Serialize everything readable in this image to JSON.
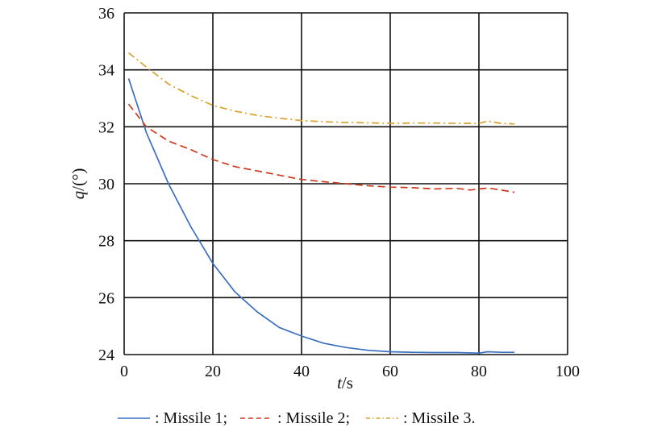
{
  "chart_data": {
    "type": "line",
    "title": "",
    "xlabel_italic": "t",
    "xlabel_rest": "/s",
    "ylabel_italic": "q",
    "ylabel_rest": "/(°)",
    "xlim": [
      0,
      100
    ],
    "ylim": [
      24,
      36
    ],
    "xticks": [
      0,
      20,
      40,
      60,
      80,
      100
    ],
    "yticks": [
      24,
      26,
      28,
      30,
      32,
      34,
      36
    ],
    "grid": true,
    "legend_placement": "bottom",
    "series": [
      {
        "name": "Missile 1",
        "legend_label": ": Missile 1;",
        "color": "#3a6fc0",
        "dash": "solid",
        "x": [
          1,
          5,
          10,
          15,
          20,
          25,
          30,
          35,
          40,
          45,
          50,
          55,
          60,
          65,
          70,
          75,
          80,
          82,
          85,
          88
        ],
        "y": [
          33.7,
          31.8,
          30.0,
          28.5,
          27.2,
          26.2,
          25.5,
          24.95,
          24.65,
          24.4,
          24.25,
          24.15,
          24.1,
          24.08,
          24.07,
          24.07,
          24.05,
          24.1,
          24.08,
          24.08
        ]
      },
      {
        "name": "Missile 2",
        "legend_label": ": Missile 2;",
        "color": "#cc3a1e",
        "dash": "dashed",
        "x": [
          1,
          5,
          10,
          15,
          20,
          25,
          30,
          35,
          40,
          45,
          50,
          55,
          60,
          65,
          70,
          75,
          78,
          82,
          85,
          88
        ],
        "y": [
          32.8,
          32.0,
          31.5,
          31.2,
          30.85,
          30.6,
          30.45,
          30.3,
          30.15,
          30.07,
          30.0,
          29.93,
          29.88,
          29.86,
          29.82,
          29.84,
          29.78,
          29.85,
          29.78,
          29.7
        ]
      },
      {
        "name": "Missile 3",
        "legend_label": ": Missile 3.",
        "color": "#d9a12a",
        "dash": "dashdot",
        "x": [
          1,
          5,
          10,
          15,
          20,
          25,
          30,
          35,
          40,
          45,
          50,
          55,
          60,
          65,
          70,
          75,
          80,
          82,
          85,
          88
        ],
        "y": [
          34.6,
          34.1,
          33.5,
          33.1,
          32.75,
          32.55,
          32.4,
          32.3,
          32.22,
          32.18,
          32.15,
          32.14,
          32.12,
          32.13,
          32.13,
          32.12,
          32.12,
          32.2,
          32.12,
          32.1
        ]
      }
    ]
  }
}
